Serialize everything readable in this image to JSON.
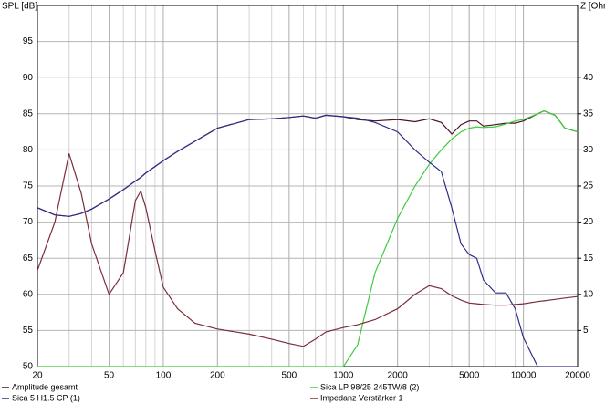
{
  "chart_data": {
    "type": "line",
    "ylabel": "SPL [dB]",
    "y2label": "Z [Ohm",
    "log_x": true,
    "grid": true,
    "x": [
      20,
      25,
      30,
      35,
      40,
      50,
      60,
      70,
      75,
      80,
      90,
      100,
      120,
      150,
      200,
      300,
      400,
      500,
      600,
      700,
      800,
      1000,
      1200,
      1500,
      2000,
      2500,
      3000,
      3500,
      4000,
      4500,
      5000,
      5500,
      6000,
      7000,
      8000,
      9000,
      10000,
      12000,
      13000,
      15000,
      17000,
      20000
    ],
    "xlim": [
      20,
      20000
    ],
    "xticks": [
      20,
      50,
      100,
      200,
      500,
      1000,
      2000,
      5000,
      10000,
      20000
    ],
    "ylim": [
      50,
      100
    ],
    "yticks": [
      50,
      55,
      60,
      65,
      70,
      75,
      80,
      85,
      90,
      95
    ],
    "y2lim": [
      0,
      50
    ],
    "y2ticks": [
      5,
      10,
      15,
      20,
      25,
      30,
      35,
      40
    ],
    "series": [
      {
        "name": "Amplitude gesamt",
        "color": "#4a1426",
        "values": [
          72,
          71,
          70.8,
          71.2,
          71.8,
          73.2,
          74.5,
          75.7,
          76.2,
          76.8,
          77.7,
          78.5,
          79.8,
          81.2,
          83,
          84.2,
          84.3,
          84.5,
          84.7,
          84.4,
          84.8,
          84.6,
          84.2,
          84,
          84.2,
          83.9,
          84.3,
          83.8,
          82.2,
          83.5,
          84,
          84,
          83.3,
          83.5,
          83.7,
          83.7,
          84,
          85,
          85.4,
          84.8,
          83,
          82.5
        ]
      },
      {
        "name": "Sica LP 98/25 245TW/8 (2)",
        "color": "#3ccc3c",
        "values": [
          50,
          50,
          50,
          50,
          50,
          50,
          50,
          50,
          50,
          50,
          50,
          50,
          50,
          50,
          50,
          50,
          50,
          50,
          50,
          50,
          50,
          50,
          53,
          63,
          70.5,
          75,
          78,
          80,
          81.5,
          82.5,
          83,
          83.2,
          83.1,
          83.2,
          83.6,
          84,
          84.2,
          85,
          85.4,
          84.8,
          83,
          82.5
        ]
      },
      {
        "name": "Sica 5 H1.5 CP (1)",
        "color": "#2e2e8c",
        "values": [
          72,
          71,
          70.8,
          71.2,
          71.8,
          73.2,
          74.5,
          75.7,
          76.2,
          76.8,
          77.7,
          78.5,
          79.8,
          81.2,
          83,
          84.2,
          84.3,
          84.5,
          84.7,
          84.4,
          84.8,
          84.6,
          84.4,
          83.8,
          82.5,
          80,
          78.3,
          77,
          72,
          67,
          65.5,
          65,
          62,
          60.2,
          60.2,
          58,
          54,
          50,
          50,
          50,
          50,
          50
        ]
      },
      {
        "name": "Impedanz Verstärker 1",
        "color": "#7a2e3a",
        "axis": "y2",
        "values": [
          13.3,
          20,
          29.5,
          24,
          17,
          10,
          13,
          23,
          24.3,
          22,
          16,
          11,
          8,
          6,
          5.2,
          4.5,
          3.8,
          3.2,
          2.8,
          3.8,
          4.8,
          5.4,
          5.8,
          6.5,
          8,
          10,
          11.2,
          10.8,
          9.8,
          9.2,
          8.8,
          8.7,
          8.6,
          8.5,
          8.5,
          8.6,
          8.7,
          9,
          9.1,
          9.3,
          9.5,
          9.7
        ]
      }
    ]
  }
}
